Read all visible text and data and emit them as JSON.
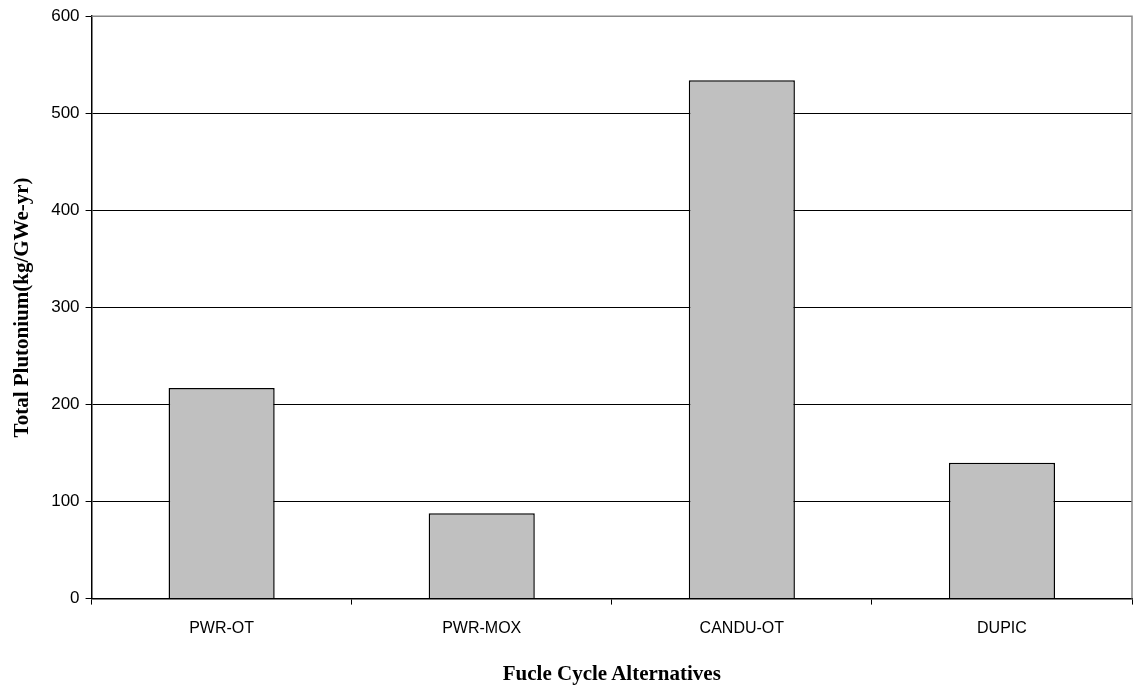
{
  "chart_data": {
    "type": "bar",
    "xlabel": "Fucle Cycle Alternatives",
    "ylabel": "Total Plutonium(kg/GWe-yr)",
    "categories": [
      "PWR-OT",
      "PWR-MOX",
      "CANDU-OT",
      "DUPIC"
    ],
    "values": [
      217,
      88,
      534,
      140
    ],
    "color": "#c0c0c0",
    "ylim": [
      0,
      600
    ],
    "yticks": [
      0,
      100,
      200,
      300,
      400,
      500,
      600
    ],
    "grid": "y",
    "legend": false
  }
}
